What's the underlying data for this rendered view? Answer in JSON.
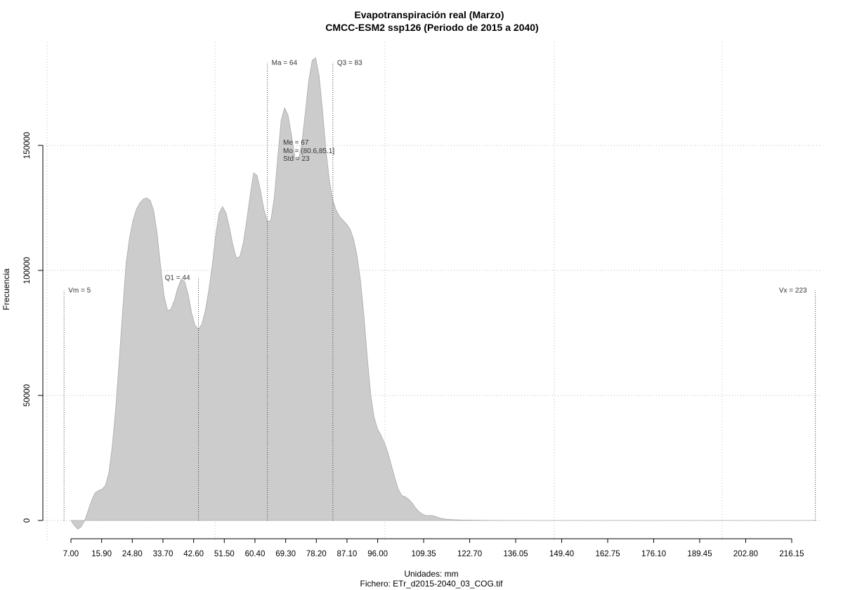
{
  "chart_data": {
    "type": "area",
    "title": "Evapotranspiración real (Marzo)",
    "subtitle": "CMCC-ESM2 ssp126 (Periodo de 2015 a 2040)",
    "xlabel": "Unidades: mm",
    "file_caption": "Fichero: ETr_d2015-2040_03_COG.tif",
    "ylabel": "Frecuencia",
    "xlim": [
      0,
      228
    ],
    "ylim": [
      0,
      180000
    ],
    "grid": true,
    "x_ticks": [
      "7.00",
      "15.90",
      "24.80",
      "33.70",
      "42.60",
      "51.50",
      "60.40",
      "69.30",
      "78.20",
      "87.10",
      "96.00",
      "109.35",
      "122.70",
      "136.05",
      "149.40",
      "162.75",
      "176.10",
      "189.45",
      "202.80",
      "216.15"
    ],
    "x_tick_values": [
      7.0,
      15.9,
      24.8,
      33.7,
      42.6,
      51.5,
      60.4,
      69.3,
      78.2,
      87.1,
      96.0,
      109.35,
      122.7,
      136.05,
      149.4,
      162.75,
      176.1,
      189.45,
      202.8,
      216.15
    ],
    "y_ticks": [
      0,
      50000,
      100000,
      150000
    ],
    "y_tick_labels": [
      "0",
      "50000",
      "100000",
      "150000"
    ],
    "fill_color": "#cccccc",
    "grid_color": "#bbbbbb",
    "series": [
      {
        "points": [
          [
            7,
            0
          ],
          [
            8,
            -2000
          ],
          [
            9,
            -3500
          ],
          [
            10,
            -2500
          ],
          [
            11,
            0
          ],
          [
            12,
            4000
          ],
          [
            13,
            8000
          ],
          [
            14,
            11000
          ],
          [
            15,
            12000
          ],
          [
            16,
            12500
          ],
          [
            17,
            14000
          ],
          [
            18,
            19000
          ],
          [
            19,
            30000
          ],
          [
            20,
            45000
          ],
          [
            21,
            64000
          ],
          [
            22,
            84000
          ],
          [
            23,
            103000
          ],
          [
            24,
            113000
          ],
          [
            25,
            120000
          ],
          [
            26,
            124500
          ],
          [
            27,
            127000
          ],
          [
            28,
            128500
          ],
          [
            29,
            129000
          ],
          [
            30,
            128000
          ],
          [
            31,
            124000
          ],
          [
            32,
            115000
          ],
          [
            33,
            102000
          ],
          [
            34,
            90000
          ],
          [
            35,
            84000
          ],
          [
            36,
            84500
          ],
          [
            37,
            88000
          ],
          [
            38,
            93000
          ],
          [
            39,
            96500
          ],
          [
            40,
            95500
          ],
          [
            41,
            90500
          ],
          [
            42,
            83000
          ],
          [
            43,
            78000
          ],
          [
            44,
            76500
          ],
          [
            45,
            78500
          ],
          [
            46,
            84000
          ],
          [
            47,
            92000
          ],
          [
            48,
            102000
          ],
          [
            49,
            114000
          ],
          [
            50,
            123000
          ],
          [
            51,
            125500
          ],
          [
            52,
            123000
          ],
          [
            53,
            117000
          ],
          [
            54,
            110000
          ],
          [
            55,
            105000
          ],
          [
            56,
            105500
          ],
          [
            57,
            111000
          ],
          [
            58,
            120000
          ],
          [
            59,
            130000
          ],
          [
            60,
            139000
          ],
          [
            61,
            138000
          ],
          [
            62,
            132000
          ],
          [
            63,
            124500
          ],
          [
            64,
            119500
          ],
          [
            65,
            120000
          ],
          [
            66,
            129000
          ],
          [
            67,
            145000
          ],
          [
            68,
            160000
          ],
          [
            69,
            165000
          ],
          [
            70,
            162000
          ],
          [
            71,
            154000
          ],
          [
            72,
            145000
          ],
          [
            73,
            144000
          ],
          [
            74,
            151000
          ],
          [
            75,
            163000
          ],
          [
            76,
            176000
          ],
          [
            77,
            184000
          ],
          [
            78,
            185000
          ],
          [
            79,
            178000
          ],
          [
            80,
            164000
          ],
          [
            81,
            148000
          ],
          [
            82,
            136000
          ],
          [
            83,
            128000
          ],
          [
            84,
            124000
          ],
          [
            85,
            121500
          ],
          [
            86,
            120000
          ],
          [
            87,
            118500
          ],
          [
            88,
            116500
          ],
          [
            89,
            112500
          ],
          [
            90,
            106000
          ],
          [
            91,
            96000
          ],
          [
            92,
            82000
          ],
          [
            93,
            65000
          ],
          [
            94,
            50000
          ],
          [
            95,
            41000
          ],
          [
            96,
            36500
          ],
          [
            97,
            34000
          ],
          [
            98,
            31000
          ],
          [
            99,
            27000
          ],
          [
            100,
            22000
          ],
          [
            101,
            17000
          ],
          [
            102,
            12500
          ],
          [
            103,
            10000
          ],
          [
            104,
            9500
          ],
          [
            105,
            8500
          ],
          [
            106,
            7000
          ],
          [
            107,
            5000
          ],
          [
            108,
            3500
          ],
          [
            109,
            2500
          ],
          [
            110,
            2000
          ],
          [
            111,
            2000
          ],
          [
            112,
            1900
          ],
          [
            113,
            1500
          ],
          [
            114,
            1000
          ],
          [
            115,
            700
          ],
          [
            116,
            500
          ],
          [
            117,
            400
          ],
          [
            118,
            300
          ],
          [
            120,
            200
          ],
          [
            125,
            80
          ],
          [
            130,
            30
          ],
          [
            140,
            10
          ],
          [
            160,
            5
          ],
          [
            180,
            2
          ],
          [
            200,
            1
          ],
          [
            223,
            0
          ]
        ]
      }
    ],
    "vlines": [
      {
        "label": "Vm = 5",
        "x": 5,
        "y": 92000,
        "label_side": "right"
      },
      {
        "label": "Q1 = 44",
        "x": 44,
        "y": 97000,
        "label_side": "left"
      },
      {
        "label": "Ma = 64",
        "x": 64,
        "y": 183000,
        "label_side": "right"
      },
      {
        "label": "Q3 = 83",
        "x": 83,
        "y": 183000,
        "label_side": "right"
      },
      {
        "label": "Vx = 223",
        "x": 223,
        "y": 92000,
        "label_side": "left"
      }
    ],
    "stats_text": [
      "Me = 67",
      "Mo = (80.6,85.1]",
      "Std = 23"
    ]
  }
}
